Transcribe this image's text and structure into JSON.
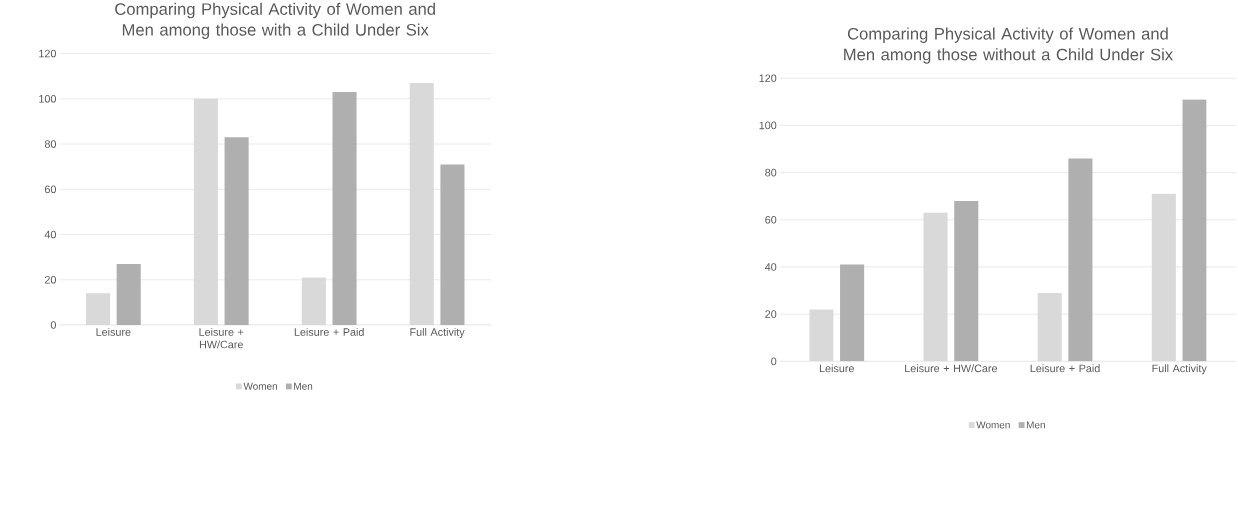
{
  "chart_data": [
    {
      "type": "bar",
      "title": "Comparing Physical Activity of Women and Men among those with a Child Under Six",
      "categories": [
        "Leisure",
        "Leisure + HW/Care",
        "Leisure + Paid",
        "Full Activity"
      ],
      "series": [
        {
          "name": "Women",
          "color": "#d9d9d9",
          "values": [
            14,
            100,
            21,
            107
          ]
        },
        {
          "name": "Men",
          "color": "#afafaf",
          "values": [
            27,
            83,
            103,
            71
          ]
        }
      ],
      "ylim": [
        0,
        120
      ],
      "yticks": [
        0,
        20,
        40,
        60,
        80,
        100,
        120
      ],
      "grid": "y",
      "legend": "bottom"
    },
    {
      "type": "bar",
      "title": "Comparing Physical Activity of Women and Men among those without a Child Under Six",
      "categories": [
        "Leisure",
        "Leisure + HW/Care",
        "Leisure + Paid",
        "Full Activity"
      ],
      "series": [
        {
          "name": "Women",
          "color": "#d9d9d9",
          "values": [
            22,
            63,
            29,
            71
          ]
        },
        {
          "name": "Men",
          "color": "#afafaf",
          "values": [
            41,
            68,
            86,
            111
          ]
        }
      ],
      "ylim": [
        0,
        120
      ],
      "yticks": [
        0,
        20,
        40,
        60,
        80,
        100,
        120
      ],
      "grid": "y",
      "legend": "bottom"
    }
  ]
}
